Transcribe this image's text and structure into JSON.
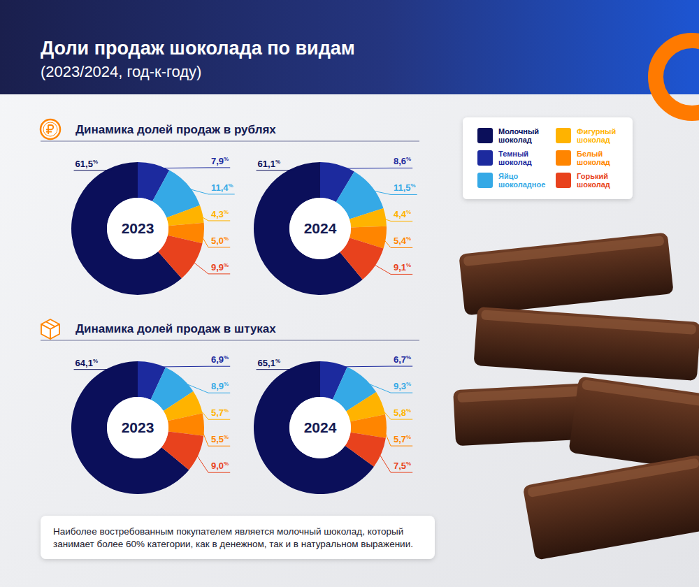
{
  "chart_data": {
    "type": "donut",
    "title": "Доли продаж шоколада по видам",
    "subtitle": "(2023/2024, год-к-году)",
    "categories": [
      "Молочный шоколад",
      "Темный шоколад",
      "Яйцо шоколадное",
      "Фигурный шоколад",
      "Белый шоколад",
      "Горький шоколад"
    ],
    "colors": [
      "#0b0f5a",
      "#1c2a9e",
      "#35a9e6",
      "#ffb300",
      "#ff8500",
      "#e8421d"
    ],
    "legend": "top-right",
    "data_labels": true,
    "panels": [
      {
        "title": "Динамика долей продаж в рублях",
        "series": [
          {
            "name": "2023",
            "values": [
              61.5,
              7.9,
              11.4,
              4.3,
              5.0,
              9.9
            ],
            "value_labels": [
              "61,5%",
              "7,9%",
              "11,4%",
              "4,3%",
              "5,0%",
              "9,9%"
            ]
          },
          {
            "name": "2024",
            "values": [
              61.1,
              8.6,
              11.5,
              4.4,
              5.4,
              9.1
            ],
            "value_labels": [
              "61,1%",
              "8,6%",
              "11,5%",
              "4,4%",
              "5,4%",
              "9,1%"
            ]
          }
        ]
      },
      {
        "title": "Динамика долей продаж в штуках",
        "series": [
          {
            "name": "2023",
            "values": [
              64.1,
              6.9,
              8.9,
              5.7,
              5.5,
              9.0
            ],
            "value_labels": [
              "64,1%",
              "6,9%",
              "8,9%",
              "5,7%",
              "5,5%",
              "9,0%"
            ]
          },
          {
            "name": "2024",
            "values": [
              65.1,
              6.7,
              9.3,
              5.8,
              5.7,
              7.5
            ],
            "value_labels": [
              "65,1%",
              "6,7%",
              "9,3%",
              "5,8%",
              "5,7%",
              "7,5%"
            ]
          }
        ]
      }
    ],
    "annotations": [
      "Наиболее востребованным покупателем является молочный шоколад, который занимает более 60% категории, как в денежном, так и в натуральном выражении."
    ]
  }
}
